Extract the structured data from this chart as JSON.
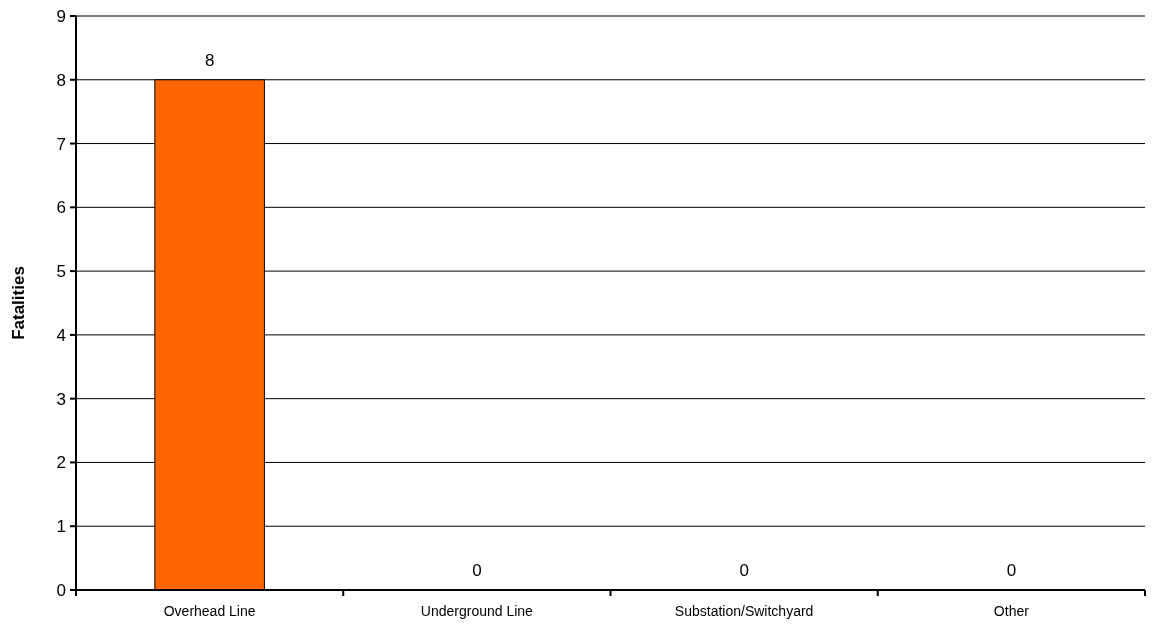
{
  "chart_data": {
    "type": "bar",
    "ylabel": "Fatalities",
    "categories": [
      "Overhead Line",
      "Underground Line",
      "Substation/Switchyard",
      "Other"
    ],
    "values": [
      8,
      0,
      0,
      0
    ],
    "color": "#ff6600",
    "ylim": [
      0,
      9
    ],
    "yticks": [
      0,
      1,
      2,
      3,
      4,
      5,
      6,
      7,
      8,
      9
    ],
    "grid": "y",
    "data_labels": true
  }
}
